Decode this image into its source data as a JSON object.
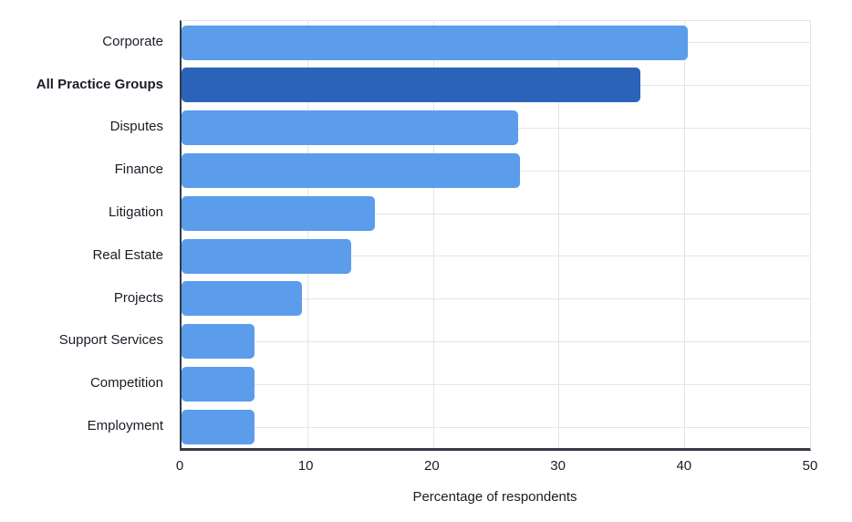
{
  "chart_data": {
    "type": "bar",
    "orientation": "horizontal",
    "title": "",
    "xlabel": "Percentage of respondents",
    "ylabel": "",
    "xlim": [
      0,
      50
    ],
    "xticks": [
      "0",
      "10",
      "20",
      "30",
      "40",
      "50"
    ],
    "grid": true,
    "categories": [
      "Corporate",
      "All Practice Groups",
      "Disputes",
      "Finance",
      "Litigation",
      "Real Estate",
      "Projects",
      "Support Services",
      "Competition",
      "Employment"
    ],
    "values": [
      40.3,
      36.5,
      26.8,
      26.9,
      15.4,
      13.5,
      9.6,
      5.8,
      5.8,
      5.8
    ],
    "highlighted_category": "All Practice Groups",
    "colors": {
      "bar": "#5B9CEB",
      "highlight_bar": "#2B63B9",
      "axis_line": "#363A45",
      "gridline": "#E2E6EC",
      "text": "#1A1D26"
    }
  }
}
